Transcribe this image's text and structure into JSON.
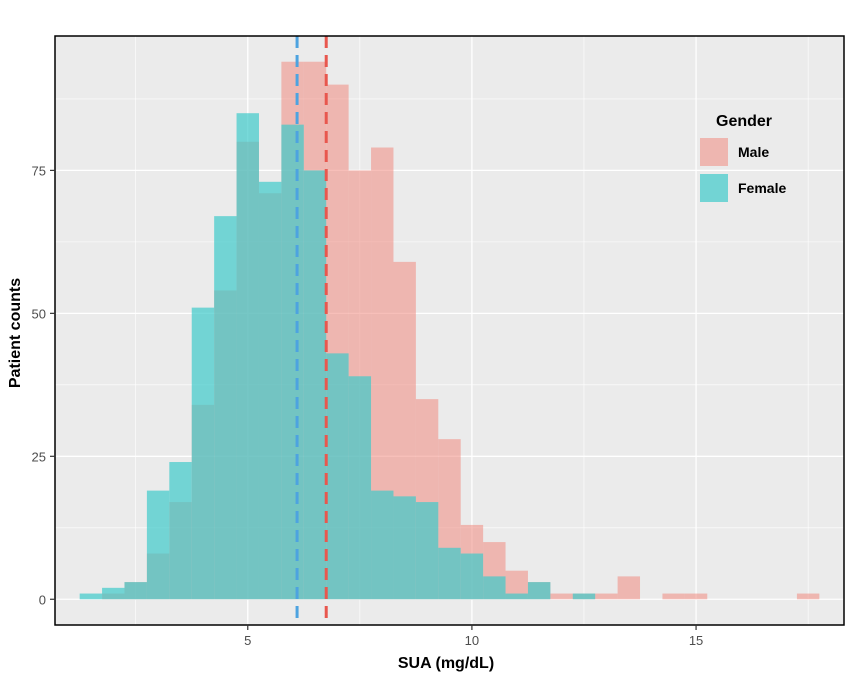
{
  "chart_data": {
    "type": "histogram",
    "xlabel": "SUA (mg/dL)",
    "ylabel": "Patient counts",
    "xlim": [
      0.7,
      18.3
    ],
    "ylim": [
      -4.5,
      98.5
    ],
    "x_ticks": [
      5,
      10,
      15
    ],
    "y_ticks": [
      0,
      25,
      50,
      75
    ],
    "bin_width": 0.5,
    "first_bin_start": 1.25,
    "legend": {
      "title": "Gender",
      "position": "top-right"
    },
    "series": [
      {
        "name": "Male",
        "color": "#F08A80",
        "mean": 6.75,
        "counts": [
          0,
          1,
          3,
          8,
          17,
          34,
          54,
          80,
          71,
          94,
          94,
          90,
          75,
          79,
          59,
          35,
          28,
          13,
          10,
          5,
          3,
          1,
          1,
          1,
          4,
          0,
          1,
          1,
          0,
          0,
          0,
          0,
          1
        ]
      },
      {
        "name": "Female",
        "color": "#3FCBCB",
        "mean": 6.1,
        "counts": [
          1,
          2,
          3,
          19,
          24,
          51,
          67,
          85,
          73,
          83,
          75,
          43,
          39,
          19,
          18,
          17,
          9,
          8,
          4,
          1,
          3,
          0,
          1,
          0,
          0,
          0,
          0,
          0,
          0,
          0,
          0,
          0,
          0
        ]
      }
    ]
  }
}
